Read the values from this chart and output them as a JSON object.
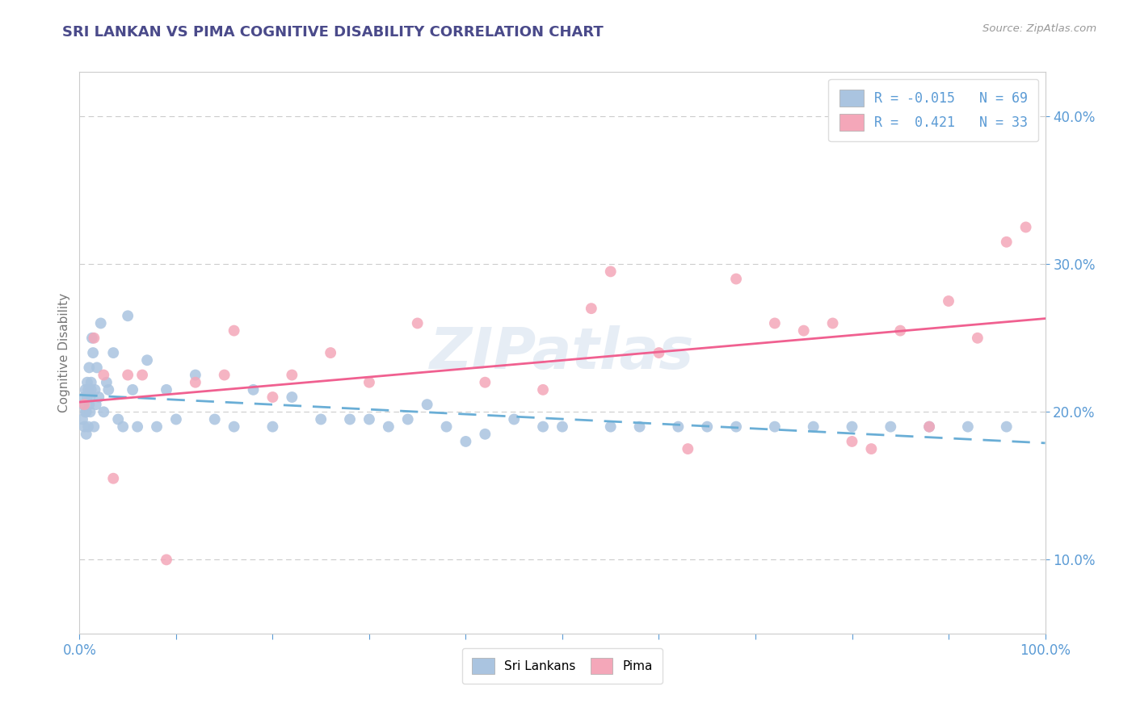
{
  "title": "SRI LANKAN VS PIMA COGNITIVE DISABILITY CORRELATION CHART",
  "source": "Source: ZipAtlas.com",
  "ylabel": "Cognitive Disability",
  "legend_labels": [
    "Sri Lankans",
    "Pima"
  ],
  "sri_lankan_R": -0.015,
  "sri_lankan_N": 69,
  "pima_R": 0.421,
  "pima_N": 33,
  "sri_lankan_color": "#aac4e0",
  "pima_color": "#f4a7b9",
  "sri_lankan_line_color": "#6aaed6",
  "pima_line_color": "#f06090",
  "watermark": "ZIPatlas",
  "background_color": "#ffffff",
  "grid_color": "#cccccc",
  "title_color": "#4a4a8a",
  "axis_color": "#5b9bd5",
  "xlim": [
    0.0,
    100.0
  ],
  "ylim": [
    5.0,
    43.0
  ],
  "yticks": [
    10.0,
    20.0,
    30.0,
    40.0
  ],
  "sri_lankan_x": [
    0.3,
    0.4,
    0.5,
    0.5,
    0.6,
    0.6,
    0.7,
    0.7,
    0.8,
    0.8,
    0.9,
    0.9,
    1.0,
    1.0,
    1.1,
    1.1,
    1.2,
    1.2,
    1.3,
    1.4,
    1.5,
    1.6,
    1.7,
    1.8,
    2.0,
    2.2,
    2.5,
    2.8,
    3.0,
    3.5,
    4.0,
    4.5,
    5.0,
    5.5,
    6.0,
    7.0,
    8.0,
    9.0,
    10.0,
    12.0,
    14.0,
    16.0,
    18.0,
    20.0,
    22.0,
    25.0,
    28.0,
    30.0,
    32.0,
    34.0,
    36.0,
    38.0,
    40.0,
    42.0,
    45.0,
    48.0,
    50.0,
    55.0,
    58.0,
    62.0,
    65.0,
    68.0,
    72.0,
    76.0,
    80.0,
    84.0,
    88.0,
    92.0,
    96.0
  ],
  "sri_lankan_y": [
    19.5,
    20.5,
    21.0,
    19.0,
    20.0,
    21.5,
    18.5,
    20.0,
    22.0,
    21.0,
    19.0,
    21.5,
    20.5,
    23.0,
    21.0,
    20.0,
    22.0,
    21.5,
    25.0,
    24.0,
    19.0,
    21.5,
    20.5,
    23.0,
    21.0,
    26.0,
    20.0,
    22.0,
    21.5,
    24.0,
    19.5,
    19.0,
    26.5,
    21.5,
    19.0,
    23.5,
    19.0,
    21.5,
    19.5,
    22.5,
    19.5,
    19.0,
    21.5,
    19.0,
    21.0,
    19.5,
    19.5,
    19.5,
    19.0,
    19.5,
    20.5,
    19.0,
    18.0,
    18.5,
    19.5,
    19.0,
    19.0,
    19.0,
    19.0,
    19.0,
    19.0,
    19.0,
    19.0,
    19.0,
    19.0,
    19.0,
    19.0,
    19.0,
    19.0
  ],
  "pima_x": [
    0.5,
    1.5,
    2.5,
    3.5,
    5.0,
    6.5,
    9.0,
    12.0,
    16.0,
    22.0,
    26.0,
    30.0,
    35.0,
    42.0,
    48.0,
    53.0,
    60.0,
    63.0,
    68.0,
    72.0,
    75.0,
    78.0,
    82.0,
    85.0,
    88.0,
    90.0,
    93.0,
    96.0,
    98.0,
    15.0,
    20.0,
    55.0,
    80.0
  ],
  "pima_y": [
    20.5,
    25.0,
    22.5,
    15.5,
    22.5,
    22.5,
    10.0,
    22.0,
    25.5,
    22.5,
    24.0,
    22.0,
    26.0,
    22.0,
    21.5,
    27.0,
    24.0,
    17.5,
    29.0,
    26.0,
    25.5,
    26.0,
    17.5,
    25.5,
    19.0,
    27.5,
    25.0,
    31.5,
    32.5,
    22.5,
    21.0,
    29.5,
    18.0
  ]
}
